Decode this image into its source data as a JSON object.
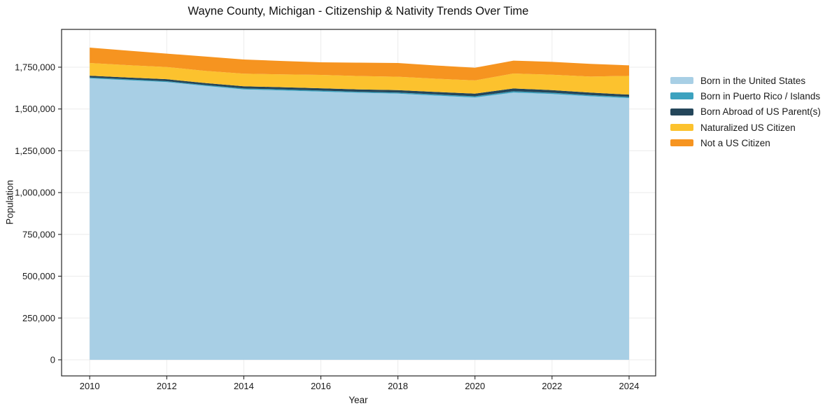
{
  "chart_data": {
    "type": "area",
    "stacked": true,
    "title": "Wayne County, Michigan - Citizenship & Nativity Trends Over Time",
    "xlabel": "Year",
    "ylabel": "Population",
    "x": [
      2010,
      2011,
      2012,
      2013,
      2014,
      2015,
      2016,
      2017,
      2018,
      2019,
      2020,
      2021,
      2022,
      2023,
      2024
    ],
    "series": [
      {
        "name": "Born in the United States",
        "color": "#a8cfe5",
        "values": [
          1683000,
          1672000,
          1661000,
          1638000,
          1617000,
          1611000,
          1604000,
          1597000,
          1592000,
          1580000,
          1569000,
          1598000,
          1590000,
          1576000,
          1565000
        ]
      },
      {
        "name": "Born in Puerto Rico / Islands",
        "color": "#3ca2bf",
        "values": [
          5000,
          5000,
          5000,
          5000,
          6000,
          6000,
          6000,
          6000,
          6000,
          7000,
          7000,
          8000,
          7000,
          7000,
          7000
        ]
      },
      {
        "name": "Born Abroad of US Parent(s)",
        "color": "#24465a",
        "values": [
          11000,
          11000,
          12000,
          12000,
          13000,
          13000,
          14000,
          14000,
          15000,
          15000,
          16000,
          17000,
          16000,
          15000,
          14000
        ]
      },
      {
        "name": "Naturalized US Citizen",
        "color": "#fcc22e",
        "values": [
          76000,
          74000,
          73000,
          73000,
          75000,
          77000,
          80000,
          80000,
          80000,
          79000,
          79000,
          89000,
          92000,
          96000,
          112000
        ]
      },
      {
        "name": "Not a US Citizen",
        "color": "#f69420",
        "values": [
          92000,
          87000,
          80000,
          86000,
          85000,
          80000,
          75000,
          80000,
          82000,
          79000,
          76000,
          77000,
          77000,
          76000,
          63000
        ]
      }
    ],
    "xticks": [
      2010,
      2012,
      2014,
      2016,
      2018,
      2020,
      2022,
      2024
    ],
    "xtick_labels": [
      "2010",
      "2012",
      "2014",
      "2016",
      "2018",
      "2020",
      "2022",
      "2024"
    ],
    "yticks": [
      0,
      250000,
      500000,
      750000,
      1000000,
      1250000,
      1500000,
      1750000
    ],
    "ytick_labels": [
      "0",
      "250,000",
      "500,000",
      "750,000",
      "1,000,000",
      "1,250,000",
      "1,500,000",
      "1,750,000"
    ],
    "xlim": [
      2009.27,
      2024.69
    ],
    "ylim": [
      -96300,
      1976000
    ],
    "grid": true,
    "grid_color": "#ebebeb",
    "frame_color": "#262626",
    "background": "#ffffff",
    "legend_position": "right-outside"
  }
}
